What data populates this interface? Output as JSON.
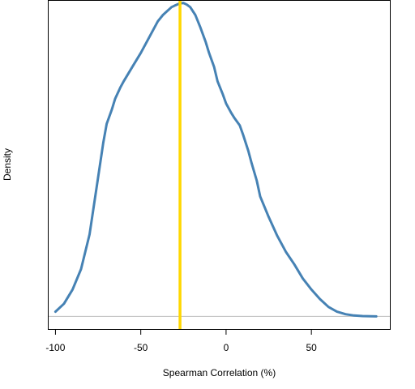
{
  "chart_data": {
    "type": "line",
    "title": "",
    "xlabel": "Spearman Correlation (%)",
    "ylabel": "Density",
    "xlim": [
      -104,
      96
    ],
    "ylim": [
      -0.004,
      0.1
    ],
    "x_ticks": [
      -100,
      -50,
      0,
      50
    ],
    "x_tick_labels": [
      "-100",
      "-50",
      "0",
      "50"
    ],
    "y_ticks_shown": false,
    "grid": false,
    "legend": "none",
    "baseline": 0,
    "reference_line": {
      "x": -27,
      "color": "#FFD700"
    },
    "series": [
      {
        "color": "#4682B4",
        "x": [
          -100,
          -95,
          -90,
          -85,
          -80,
          -75,
          -72,
          -70,
          -67,
          -65,
          -62,
          -60,
          -55,
          -50,
          -45,
          -40,
          -37,
          -35,
          -32,
          -30,
          -27,
          -25,
          -23,
          -21,
          -18,
          -15,
          -12,
          -10,
          -7,
          -5,
          -2,
          0,
          3,
          5,
          8,
          10,
          13,
          15,
          18,
          20,
          25,
          30,
          35,
          40,
          45,
          50,
          55,
          60,
          65,
          70,
          75,
          80,
          85,
          88
        ],
        "y": [
          0.0015,
          0.004,
          0.0085,
          0.015,
          0.026,
          0.044,
          0.055,
          0.061,
          0.0655,
          0.069,
          0.0725,
          0.0745,
          0.079,
          0.0835,
          0.0885,
          0.0935,
          0.0955,
          0.0965,
          0.098,
          0.0985,
          0.0992,
          0.0993,
          0.0988,
          0.098,
          0.0955,
          0.0915,
          0.087,
          0.0835,
          0.079,
          0.0745,
          0.0705,
          0.0675,
          0.0645,
          0.0628,
          0.0605,
          0.0575,
          0.0525,
          0.0485,
          0.043,
          0.038,
          0.0315,
          0.0255,
          0.0205,
          0.0165,
          0.012,
          0.0085,
          0.0055,
          0.003,
          0.0015,
          0.0007,
          0.0003,
          0.0001,
          3e-05,
          1e-05
        ]
      }
    ]
  }
}
